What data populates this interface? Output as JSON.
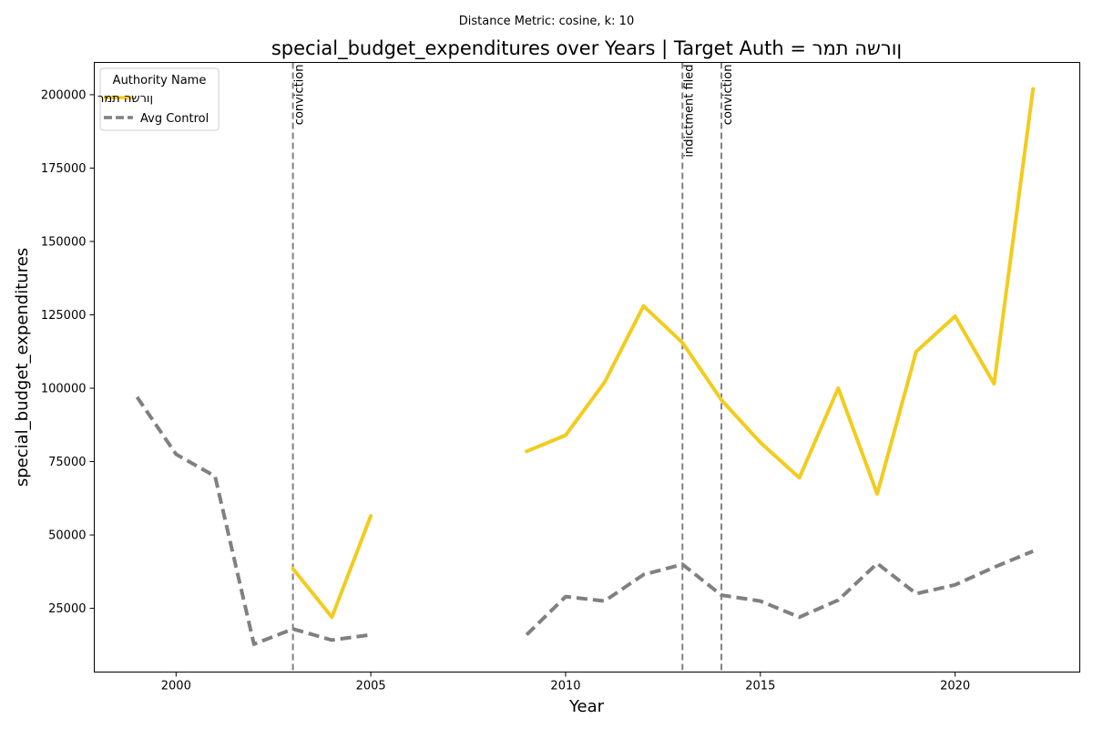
{
  "suptitle": "Distance Metric: cosine, k: 10",
  "chart_data": {
    "type": "line",
    "title": "special_budget_expenditures over Years | Target Auth = ןורשה תמר",
    "xlabel": "Year",
    "ylabel": "special_budget_expenditures",
    "xlim": [
      1997.9,
      2023.2
    ],
    "ylim": [
      3300,
      211000
    ],
    "xticks": [
      2000,
      2005,
      2010,
      2015,
      2020
    ],
    "yticks": [
      25000,
      50000,
      75000,
      100000,
      125000,
      150000,
      175000,
      200000
    ],
    "grid": false,
    "legend": {
      "title": "Authority Name",
      "placement": "top-left"
    },
    "series": [
      {
        "name": "ןורשה תמר",
        "color": "#f2cc1e",
        "style": "solid",
        "segments": [
          {
            "x": [
              2003,
              2004,
              2005
            ],
            "y": [
              38500,
              22000,
              56500
            ]
          },
          {
            "x": [
              2009,
              2010,
              2011,
              2012,
              2013,
              2014,
              2015,
              2016,
              2017,
              2018,
              2019,
              2020,
              2021,
              2022
            ],
            "y": [
              78500,
              84000,
              102000,
              128000,
              115500,
              96000,
              81500,
              69500,
              100000,
              64000,
              112500,
              124500,
              101500,
              202000
            ]
          }
        ]
      },
      {
        "name": "Avg Control",
        "color": "#808080",
        "style": "dashed",
        "segments": [
          {
            "x": [
              1999,
              2000,
              2001,
              2002,
              2003,
              2004,
              2005
            ],
            "y": [
              97000,
              77500,
              70000,
              12800,
              18000,
              14200,
              16000
            ]
          },
          {
            "x": [
              2009,
              2010,
              2011,
              2012,
              2013,
              2014,
              2015,
              2016,
              2017,
              2018,
              2019,
              2020,
              2021,
              2022
            ],
            "y": [
              16000,
              29000,
              27500,
              36500,
              40000,
              29500,
              27500,
              22000,
              27800,
              40300,
              30000,
              33000,
              39000,
              44500
            ]
          }
        ]
      }
    ],
    "events": [
      {
        "x": 2003,
        "label": "conviction"
      },
      {
        "x": 2013,
        "label": "indictment filed"
      },
      {
        "x": 2014,
        "label": "conviction"
      }
    ]
  }
}
